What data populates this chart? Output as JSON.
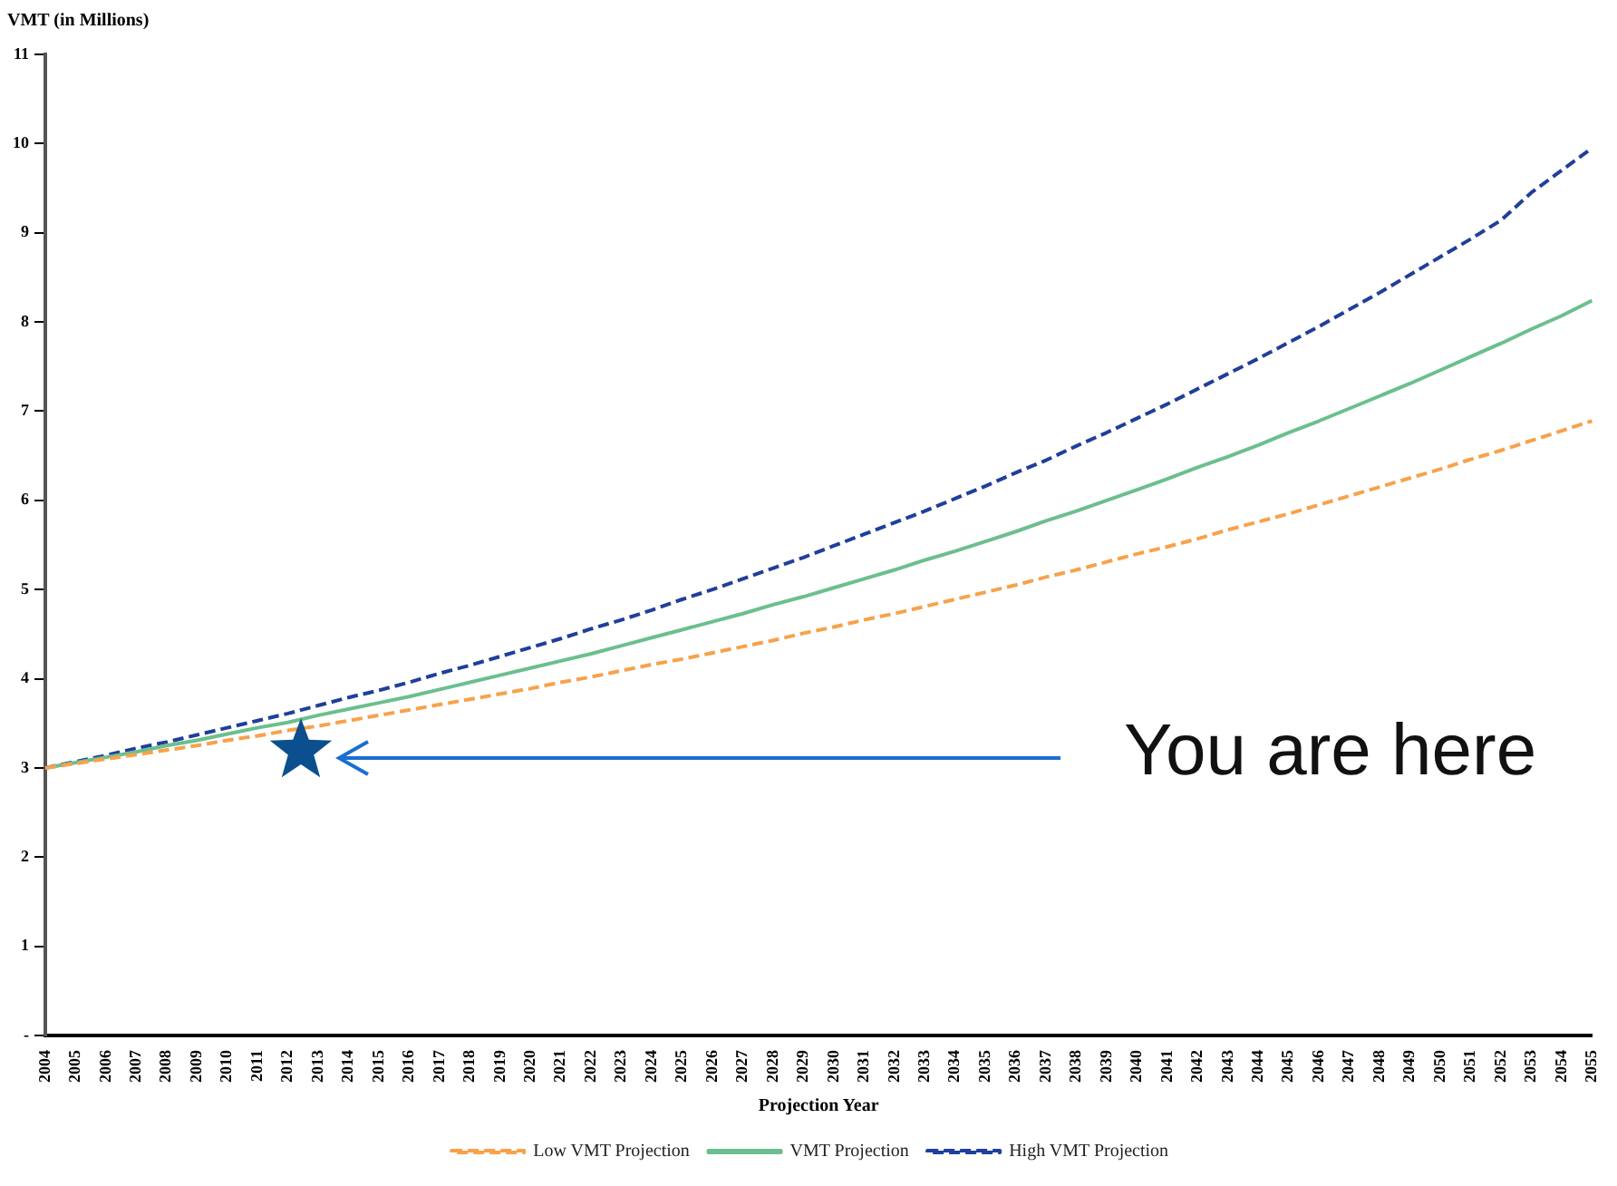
{
  "chart_data": {
    "type": "line",
    "ylabel": "VMT (in Millions)",
    "xlabel": "Projection Year",
    "categories": [
      "2004",
      "2005",
      "2006",
      "2007",
      "2008",
      "2009",
      "2010",
      "2011",
      "2012",
      "2013",
      "2014",
      "2015",
      "2016",
      "2017",
      "2018",
      "2019",
      "2020",
      "2021",
      "2022",
      "2023",
      "2024",
      "2025",
      "2026",
      "2027",
      "2028",
      "2029",
      "2030",
      "2031",
      "2032",
      "2033",
      "2034",
      "2035",
      "2036",
      "2037",
      "2038",
      "2039",
      "2040",
      "2041",
      "2042",
      "2043",
      "2044",
      "2045",
      "2046",
      "2047",
      "2048",
      "2049",
      "2050",
      "2051",
      "2052",
      "2053",
      "2054",
      "2055"
    ],
    "series": [
      {
        "name": "VMT Projection",
        "color": "#6bbf8e",
        "line_style": "solid",
        "values": [
          3.0,
          3.06,
          3.12,
          3.18,
          3.25,
          3.31,
          3.38,
          3.45,
          3.51,
          3.59,
          3.66,
          3.73,
          3.8,
          3.88,
          3.96,
          4.04,
          4.12,
          4.2,
          4.28,
          4.37,
          4.46,
          4.55,
          4.64,
          4.73,
          4.83,
          4.92,
          5.02,
          5.12,
          5.22,
          5.33,
          5.43,
          5.54,
          5.65,
          5.77,
          5.88,
          6.0,
          6.12,
          6.24,
          6.37,
          6.49,
          6.62,
          6.76,
          6.89,
          7.03,
          7.17,
          7.31,
          7.46,
          7.61,
          7.76,
          7.92,
          8.07,
          8.24
        ]
      },
      {
        "name": "Low VMT Projection",
        "color": "#f7a24b",
        "line_style": "dashed",
        "values": [
          3.0,
          3.05,
          3.1,
          3.15,
          3.2,
          3.25,
          3.31,
          3.36,
          3.42,
          3.47,
          3.53,
          3.59,
          3.65,
          3.71,
          3.77,
          3.83,
          3.89,
          3.96,
          4.02,
          4.09,
          4.16,
          4.22,
          4.29,
          4.36,
          4.43,
          4.51,
          4.58,
          4.66,
          4.73,
          4.81,
          4.89,
          4.97,
          5.05,
          5.14,
          5.22,
          5.31,
          5.4,
          5.48,
          5.57,
          5.67,
          5.76,
          5.85,
          5.95,
          6.05,
          6.15,
          6.25,
          6.35,
          6.46,
          6.56,
          6.67,
          6.78,
          6.89
        ]
      },
      {
        "name": "High VMT Projection",
        "color": "#1f3f9a",
        "line_style": "dashed",
        "values": [
          3.0,
          3.07,
          3.14,
          3.22,
          3.29,
          3.37,
          3.45,
          3.53,
          3.61,
          3.7,
          3.79,
          3.87,
          3.96,
          4.06,
          4.15,
          4.25,
          4.35,
          4.45,
          4.56,
          4.66,
          4.77,
          4.89,
          5.0,
          5.12,
          5.24,
          5.36,
          5.49,
          5.62,
          5.75,
          5.88,
          6.02,
          6.16,
          6.31,
          6.45,
          6.61,
          6.76,
          6.92,
          7.08,
          7.25,
          7.42,
          7.59,
          7.77,
          7.95,
          8.14,
          8.33,
          8.53,
          8.73,
          8.93,
          9.14,
          9.45,
          9.7,
          9.95
        ]
      }
    ],
    "ylim": [
      0,
      11
    ],
    "yticks": [
      {
        "value": 0,
        "label": "-"
      },
      1,
      2,
      3,
      4,
      5,
      6,
      7,
      8,
      9,
      10,
      11
    ],
    "grid": false,
    "legend": "bottom",
    "marker": "none",
    "annotations": [
      "You are here"
    ]
  }
}
